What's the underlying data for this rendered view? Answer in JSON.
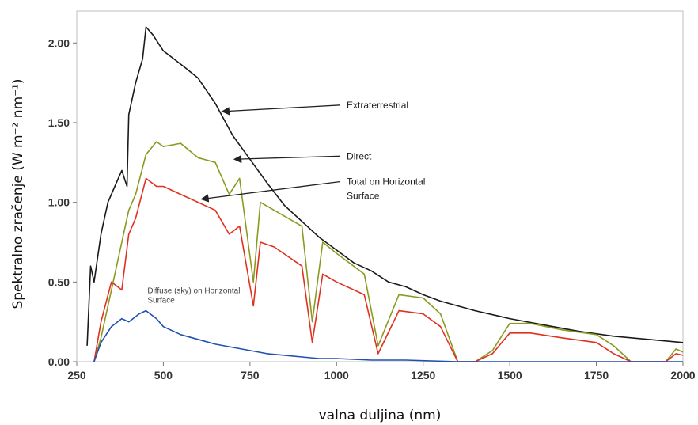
{
  "chart_data": {
    "type": "line",
    "title": "",
    "xlabel": "valna duljina (nm)",
    "ylabel": "Spektralno zračenje (W m⁻² nm⁻¹)",
    "xlim": [
      250,
      2000
    ],
    "ylim": [
      0,
      2.2
    ],
    "xticks": [
      "250",
      "500",
      "750",
      "1000",
      "1250",
      "1500",
      "1750",
      "2000"
    ],
    "xtick_values": [
      250,
      500,
      750,
      1000,
      1250,
      1500,
      1750,
      2000
    ],
    "yticks": [
      "0.00",
      "0.50",
      "1.00",
      "1.50",
      "2.00"
    ],
    "ytick_values": [
      0,
      0.5,
      1.0,
      1.5,
      2.0
    ],
    "grid": false,
    "series": [
      {
        "name": "Extraterrestrial",
        "color": "#1a1a1a",
        "points": [
          [
            280,
            0.1
          ],
          [
            290,
            0.6
          ],
          [
            300,
            0.5
          ],
          [
            320,
            0.8
          ],
          [
            340,
            1.0
          ],
          [
            360,
            1.1
          ],
          [
            380,
            1.2
          ],
          [
            395,
            1.1
          ],
          [
            400,
            1.55
          ],
          [
            420,
            1.75
          ],
          [
            440,
            1.9
          ],
          [
            450,
            2.1
          ],
          [
            470,
            2.05
          ],
          [
            500,
            1.95
          ],
          [
            530,
            1.9
          ],
          [
            560,
            1.85
          ],
          [
            600,
            1.78
          ],
          [
            650,
            1.62
          ],
          [
            700,
            1.42
          ],
          [
            750,
            1.27
          ],
          [
            800,
            1.12
          ],
          [
            850,
            0.98
          ],
          [
            900,
            0.88
          ],
          [
            950,
            0.78
          ],
          [
            1000,
            0.7
          ],
          [
            1050,
            0.62
          ],
          [
            1100,
            0.57
          ],
          [
            1150,
            0.5
          ],
          [
            1200,
            0.47
          ],
          [
            1250,
            0.42
          ],
          [
            1300,
            0.38
          ],
          [
            1400,
            0.32
          ],
          [
            1500,
            0.27
          ],
          [
            1600,
            0.23
          ],
          [
            1700,
            0.19
          ],
          [
            1800,
            0.16
          ],
          [
            1900,
            0.14
          ],
          [
            2000,
            0.12
          ]
        ]
      },
      {
        "name": "Direct",
        "color": "#8a9a1e",
        "points": [
          [
            300,
            0.0
          ],
          [
            320,
            0.15
          ],
          [
            350,
            0.45
          ],
          [
            380,
            0.75
          ],
          [
            400,
            0.95
          ],
          [
            420,
            1.05
          ],
          [
            450,
            1.3
          ],
          [
            480,
            1.38
          ],
          [
            500,
            1.35
          ],
          [
            550,
            1.37
          ],
          [
            600,
            1.28
          ],
          [
            650,
            1.25
          ],
          [
            690,
            1.05
          ],
          [
            720,
            1.15
          ],
          [
            760,
            0.5
          ],
          [
            780,
            1.0
          ],
          [
            820,
            0.95
          ],
          [
            900,
            0.85
          ],
          [
            930,
            0.25
          ],
          [
            960,
            0.75
          ],
          [
            1000,
            0.68
          ],
          [
            1080,
            0.55
          ],
          [
            1120,
            0.1
          ],
          [
            1180,
            0.42
          ],
          [
            1250,
            0.4
          ],
          [
            1300,
            0.3
          ],
          [
            1350,
            0.0
          ],
          [
            1400,
            0.0
          ],
          [
            1450,
            0.07
          ],
          [
            1500,
            0.24
          ],
          [
            1560,
            0.24
          ],
          [
            1650,
            0.2
          ],
          [
            1750,
            0.17
          ],
          [
            1800,
            0.1
          ],
          [
            1850,
            0.0
          ],
          [
            1950,
            0.0
          ],
          [
            1980,
            0.08
          ],
          [
            2000,
            0.06
          ]
        ]
      },
      {
        "name": "Total on Horizontal Surface",
        "color": "#e03020",
        "points": [
          [
            300,
            0.0
          ],
          [
            320,
            0.25
          ],
          [
            350,
            0.5
          ],
          [
            380,
            0.45
          ],
          [
            400,
            0.8
          ],
          [
            420,
            0.9
          ],
          [
            450,
            1.15
          ],
          [
            480,
            1.1
          ],
          [
            500,
            1.1
          ],
          [
            550,
            1.05
          ],
          [
            600,
            1.0
          ],
          [
            650,
            0.95
          ],
          [
            690,
            0.8
          ],
          [
            720,
            0.85
          ],
          [
            760,
            0.35
          ],
          [
            780,
            0.75
          ],
          [
            820,
            0.72
          ],
          [
            900,
            0.6
          ],
          [
            930,
            0.12
          ],
          [
            960,
            0.55
          ],
          [
            1000,
            0.5
          ],
          [
            1080,
            0.42
          ],
          [
            1120,
            0.05
          ],
          [
            1180,
            0.32
          ],
          [
            1250,
            0.3
          ],
          [
            1300,
            0.22
          ],
          [
            1350,
            0.0
          ],
          [
            1400,
            0.0
          ],
          [
            1450,
            0.05
          ],
          [
            1500,
            0.18
          ],
          [
            1560,
            0.18
          ],
          [
            1650,
            0.15
          ],
          [
            1750,
            0.12
          ],
          [
            1800,
            0.05
          ],
          [
            1850,
            0.0
          ],
          [
            1950,
            0.0
          ],
          [
            1980,
            0.05
          ],
          [
            2000,
            0.04
          ]
        ]
      },
      {
        "name": "Diffuse (sky) on Horizontal Surface",
        "color": "#2050b0",
        "points": [
          [
            300,
            0.0
          ],
          [
            320,
            0.12
          ],
          [
            350,
            0.22
          ],
          [
            380,
            0.27
          ],
          [
            400,
            0.25
          ],
          [
            430,
            0.3
          ],
          [
            450,
            0.32
          ],
          [
            480,
            0.27
          ],
          [
            500,
            0.22
          ],
          [
            550,
            0.17
          ],
          [
            600,
            0.14
          ],
          [
            650,
            0.11
          ],
          [
            700,
            0.09
          ],
          [
            750,
            0.07
          ],
          [
            800,
            0.05
          ],
          [
            850,
            0.04
          ],
          [
            900,
            0.03
          ],
          [
            950,
            0.02
          ],
          [
            1000,
            0.02
          ],
          [
            1100,
            0.01
          ],
          [
            1200,
            0.01
          ],
          [
            1350,
            0.0
          ],
          [
            2000,
            0.0
          ]
        ]
      }
    ],
    "annotations": [
      {
        "name": "extraterrestrial-label",
        "lines": [
          "Extraterrestrial"
        ],
        "text_x": 1020,
        "text_y": 1.59,
        "arrow_x": 670,
        "arrow_y": 1.57
      },
      {
        "name": "direct-label",
        "lines": [
          "Direct"
        ],
        "text_x": 1020,
        "text_y": 1.27,
        "arrow_x": 705,
        "arrow_y": 1.27
      },
      {
        "name": "total-label",
        "lines": [
          "Total on Horizontal",
          "Surface"
        ],
        "text_x": 1020,
        "text_y": 1.11,
        "arrow_x": 610,
        "arrow_y": 1.02
      },
      {
        "name": "diffuse-label",
        "lines": [
          "Diffuse (sky) on Horizontal",
          "Surface"
        ],
        "text_x": 445,
        "text_y": 0.43,
        "arrow_x": null,
        "arrow_y": null
      }
    ]
  }
}
